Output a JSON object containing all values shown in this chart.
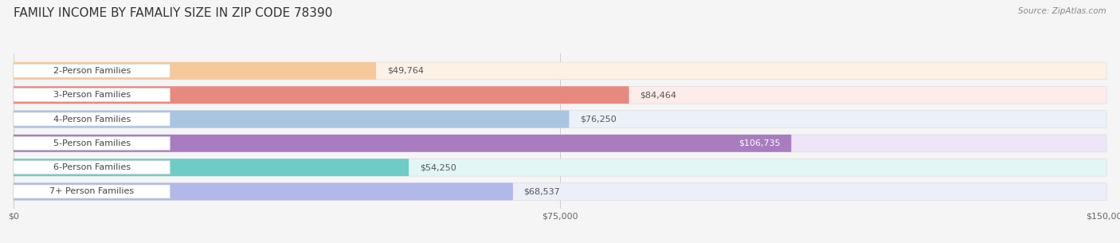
{
  "title": "FAMILY INCOME BY FAMALIY SIZE IN ZIP CODE 78390",
  "source": "Source: ZipAtlas.com",
  "categories": [
    "2-Person Families",
    "3-Person Families",
    "4-Person Families",
    "5-Person Families",
    "6-Person Families",
    "7+ Person Families"
  ],
  "values": [
    49764,
    84464,
    76250,
    106735,
    54250,
    68537
  ],
  "bar_colors": [
    "#f5c99b",
    "#e8897f",
    "#a9c5e2",
    "#a87cbf",
    "#6dcdc6",
    "#b2b9ea"
  ],
  "bar_bg_colors": [
    "#fdf1e6",
    "#fdecea",
    "#eaf1f9",
    "#eee5f6",
    "#e2f6f5",
    "#eceef9"
  ],
  "value_labels": [
    "$49,764",
    "$84,464",
    "$76,250",
    "$106,735",
    "$54,250",
    "$68,537"
  ],
  "value_inside": [
    false,
    false,
    false,
    true,
    false,
    false
  ],
  "xlim": [
    0,
    150000
  ],
  "xticks": [
    0,
    75000,
    150000
  ],
  "xticklabels": [
    "$0",
    "$75,000",
    "$150,000"
  ],
  "background_color": "#f5f5f5",
  "title_fontsize": 11,
  "label_fontsize": 8,
  "value_fontsize": 8
}
